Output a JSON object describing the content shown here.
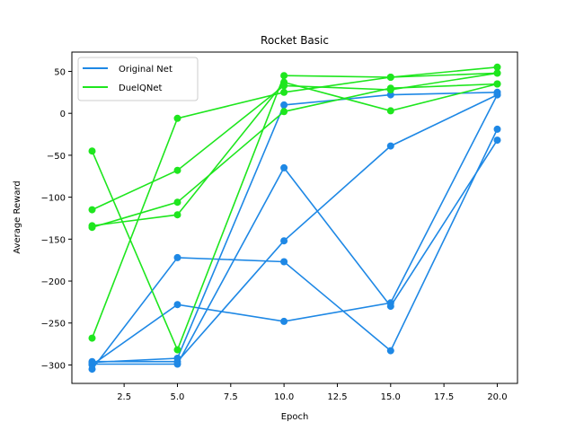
{
  "chart_data": {
    "type": "line",
    "title": "Rocket Basic",
    "xlabel": "Epoch",
    "ylabel": "Average Reward",
    "xlim": [
      0.05,
      20.95
    ],
    "ylim": [
      -322,
      73
    ],
    "x_ticks": [
      2.5,
      5.0,
      7.5,
      10.0,
      12.5,
      15.0,
      17.5,
      20.0
    ],
    "x_tick_labels": [
      "2.5",
      "5.0",
      "7.5",
      "10.0",
      "12.5",
      "15.0",
      "17.5",
      "20.0"
    ],
    "y_ticks": [
      -300,
      -250,
      -200,
      -150,
      -100,
      -50,
      0,
      50
    ],
    "y_tick_labels": [
      "−300",
      "−250",
      "−200",
      "−150",
      "−100",
      "−50",
      "0",
      "50"
    ],
    "grid": false,
    "legend_position": "top-left",
    "x": [
      1,
      5,
      10,
      15,
      20
    ],
    "groups": [
      {
        "name": "Original Net",
        "color": "#1e88e5",
        "runs": [
          [
            -297,
            -292,
            10,
            22,
            25
          ],
          [
            -300,
            -228,
            -248,
            -226,
            22
          ],
          [
            -305,
            -172,
            -177,
            -283,
            -19
          ],
          [
            -299,
            -299,
            -65,
            -230,
            -32
          ],
          [
            -296,
            -296,
            -152,
            -39,
            22
          ]
        ]
      },
      {
        "name": "DuelQNet",
        "color": "#1ee61e",
        "runs": [
          [
            -268,
            -6,
            25,
            43,
            55
          ],
          [
            -45,
            -282,
            45,
            43,
            48
          ],
          [
            -115,
            -68,
            33,
            28,
            48
          ],
          [
            -136,
            -106,
            2,
            30,
            35
          ],
          [
            -134,
            -121,
            37,
            3,
            35
          ]
        ]
      }
    ]
  }
}
